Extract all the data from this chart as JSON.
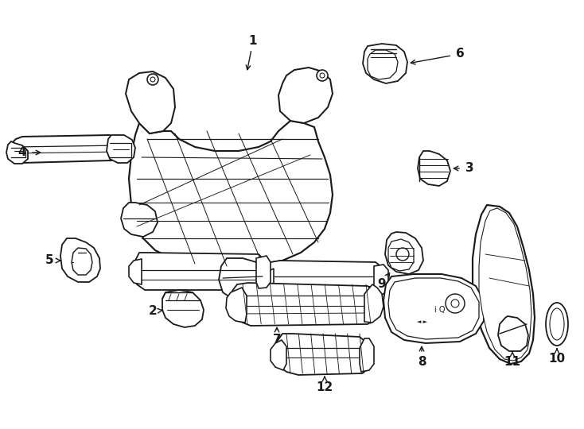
{
  "bg": "#ffffff",
  "lc": "#1a1a1a",
  "lw": 1.3,
  "fw": 7.34,
  "fh": 5.4
}
